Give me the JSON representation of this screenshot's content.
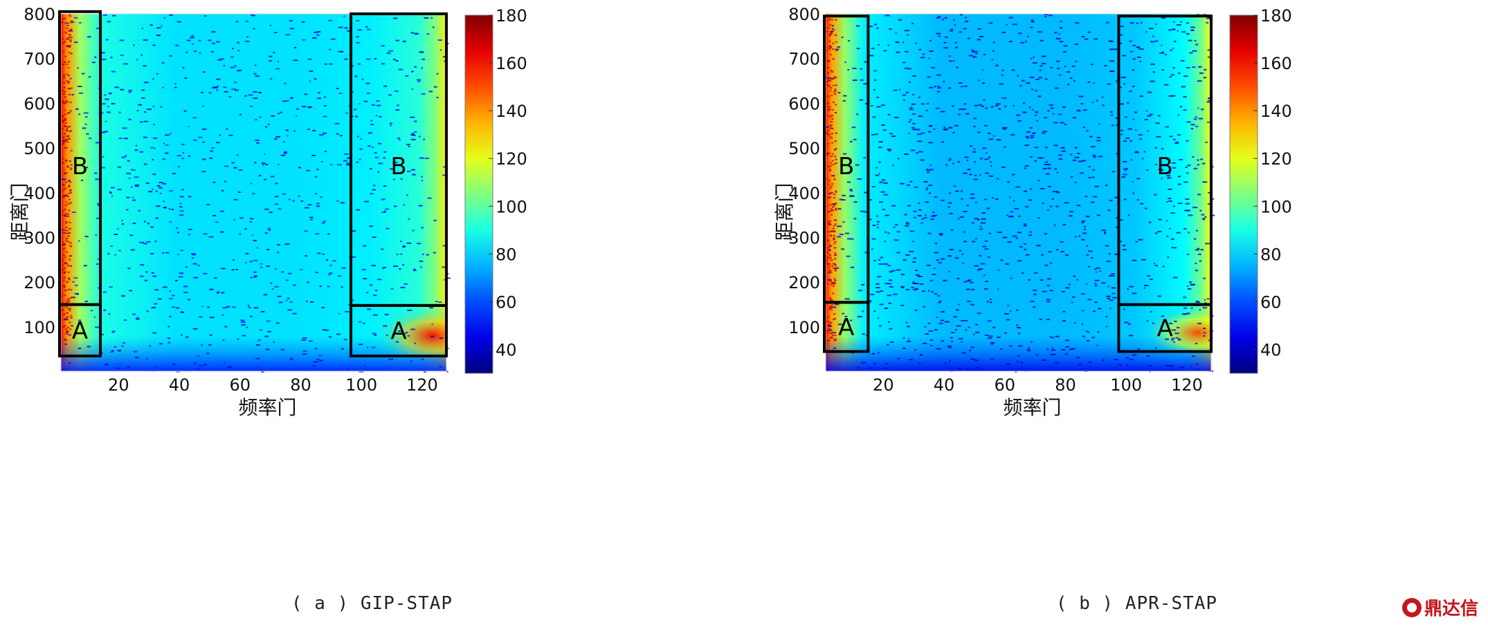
{
  "chart_data": [
    {
      "type": "heatmap",
      "id": "a",
      "caption": "( a ) GIP-STAP",
      "xlabel": "频率门",
      "ylabel": "距离门",
      "xticks": [
        "20",
        "40",
        "60",
        "80",
        "100",
        "120"
      ],
      "yticks": [
        "100",
        "200",
        "300",
        "400",
        "500",
        "600",
        "700",
        "800"
      ],
      "xlim": [
        1,
        128
      ],
      "ylim": [
        1,
        800
      ],
      "colorbar": {
        "min": 30,
        "max": 180,
        "ticks": [
          "40",
          "60",
          "80",
          "100",
          "120",
          "140",
          "160",
          "180"
        ]
      },
      "colormap": "jet",
      "background_level": 82,
      "regions": [
        {
          "label": "A",
          "x_range": [
            0,
            14
          ],
          "y_range": [
            35,
            150
          ],
          "level": 132
        },
        {
          "label": "B",
          "x_range": [
            0,
            14
          ],
          "y_range": [
            150,
            805
          ],
          "level": 130
        },
        {
          "label": "A",
          "x_range": [
            97,
            128
          ],
          "y_range": [
            35,
            148
          ],
          "level": 122
        },
        {
          "label": "B",
          "x_range": [
            97,
            128
          ],
          "y_range": [
            148,
            800
          ],
          "level": 112
        }
      ]
    },
    {
      "type": "heatmap",
      "id": "b",
      "caption": "( b ) APR-STAP",
      "xlabel": "频率门",
      "ylabel": "距离门",
      "xticks": [
        "20",
        "40",
        "60",
        "80",
        "100",
        "120"
      ],
      "yticks": [
        "100",
        "200",
        "300",
        "400",
        "500",
        "600",
        "700",
        "800"
      ],
      "xlim": [
        1,
        128
      ],
      "ylim": [
        1,
        800
      ],
      "colorbar": {
        "min": 30,
        "max": 180,
        "ticks": [
          "40",
          "60",
          "80",
          "100",
          "120",
          "140",
          "160",
          "180"
        ]
      },
      "colormap": "jet",
      "background_level": 76,
      "regions": [
        {
          "label": "A",
          "x_range": [
            0,
            15
          ],
          "y_range": [
            45,
            155
          ],
          "level": 128
        },
        {
          "label": "B",
          "x_range": [
            0,
            15
          ],
          "y_range": [
            155,
            795
          ],
          "level": 128
        },
        {
          "label": "A",
          "x_range": [
            98,
            128
          ],
          "y_range": [
            45,
            150
          ],
          "level": 112
        },
        {
          "label": "B",
          "x_range": [
            98,
            128
          ],
          "y_range": [
            150,
            795
          ],
          "level": 108
        }
      ]
    }
  ],
  "watermark": {
    "text": "鼎达信"
  }
}
